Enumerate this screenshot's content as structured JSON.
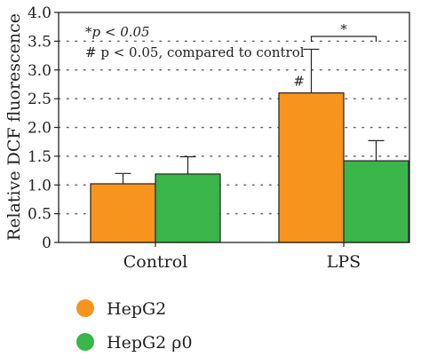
{
  "chart_data": {
    "type": "bar",
    "ylabel": "Relative DCF fluorescence",
    "xlabel": "",
    "ylim": [
      0,
      4.0
    ],
    "yticks": [
      "0",
      "0.5",
      "1.0",
      "1.5",
      "2.0",
      "2.5",
      "3.0",
      "3.5",
      "4.0"
    ],
    "grid": "horizontal dotted",
    "categories": [
      "Control",
      "LPS"
    ],
    "series": [
      {
        "name": "HepG2",
        "color": "#f7941d",
        "values": [
          1.02,
          2.6
        ],
        "errors": [
          0.18,
          0.76
        ]
      },
      {
        "name": "HepG2 ρ0",
        "color": "#39b54a",
        "values": [
          1.19,
          1.42
        ],
        "errors": [
          0.3,
          0.35
        ]
      }
    ],
    "annotations": {
      "legend_note_1": "*p < 0.05",
      "legend_note_2": "# p < 0.05, compared to control",
      "hash_mark": "#",
      "star_mark": "*"
    },
    "legend_placement": "bottom-left"
  }
}
